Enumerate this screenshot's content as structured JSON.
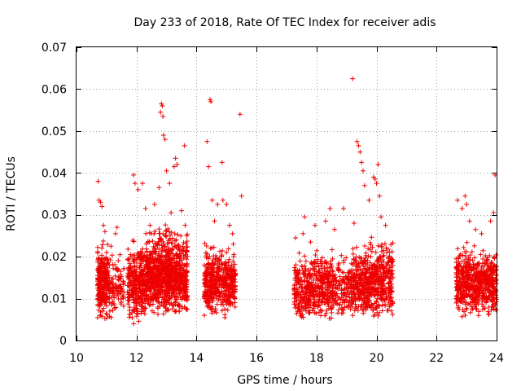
{
  "chart_data": {
    "type": "scatter",
    "title": "Day 233 of 2018, Rate Of TEC Index for receiver adis",
    "xlabel": "GPS time / hours",
    "ylabel": "ROTI / TECUs",
    "xlim": [
      10,
      24
    ],
    "ylim": [
      0,
      0.07
    ],
    "x_ticks": [
      10,
      12,
      14,
      16,
      18,
      20,
      22,
      24
    ],
    "x_tick_labels": [
      "10",
      "12",
      "14",
      "16",
      "18",
      "20",
      "22",
      "24"
    ],
    "y_ticks": [
      0,
      0.01,
      0.02,
      0.03,
      0.04,
      0.05,
      0.06,
      0.07
    ],
    "y_tick_labels": [
      "0",
      "0.01",
      "0.02",
      "0.03",
      "0.04",
      "0.05",
      "0.06",
      "0.07"
    ],
    "grid": true,
    "marker": "+",
    "marker_color": "#ee0000",
    "series": [
      {
        "name": "ROTI",
        "points": [
          [
            10.72,
            0.038
          ],
          [
            10.75,
            0.0335
          ],
          [
            10.8,
            0.033
          ],
          [
            10.85,
            0.032
          ],
          [
            10.9,
            0.0275
          ],
          [
            10.95,
            0.026
          ],
          [
            11.0,
            0.021
          ],
          [
            11.15,
            0.0225
          ],
          [
            11.3,
            0.0255
          ],
          [
            11.35,
            0.027
          ],
          [
            11.45,
            0.0205
          ],
          [
            11.9,
            0.0395
          ],
          [
            11.95,
            0.0375
          ],
          [
            12.05,
            0.036
          ],
          [
            12.2,
            0.0375
          ],
          [
            12.3,
            0.0315
          ],
          [
            12.45,
            0.0275
          ],
          [
            12.6,
            0.0325
          ],
          [
            12.75,
            0.0365
          ],
          [
            12.8,
            0.0545
          ],
          [
            12.83,
            0.0565
          ],
          [
            12.86,
            0.056
          ],
          [
            12.88,
            0.0535
          ],
          [
            12.9,
            0.049
          ],
          [
            12.95,
            0.048
          ],
          [
            13.0,
            0.0405
          ],
          [
            13.1,
            0.0375
          ],
          [
            13.15,
            0.0305
          ],
          [
            13.25,
            0.0415
          ],
          [
            13.3,
            0.0435
          ],
          [
            13.35,
            0.042
          ],
          [
            13.5,
            0.031
          ],
          [
            13.6,
            0.0465
          ],
          [
            13.62,
            0.0275
          ],
          [
            14.35,
            0.0475
          ],
          [
            14.4,
            0.0415
          ],
          [
            14.45,
            0.0575
          ],
          [
            14.48,
            0.057
          ],
          [
            14.52,
            0.0335
          ],
          [
            14.6,
            0.0285
          ],
          [
            14.7,
            0.0325
          ],
          [
            14.85,
            0.0425
          ],
          [
            14.88,
            0.0335
          ],
          [
            15.0,
            0.0325
          ],
          [
            15.1,
            0.0275
          ],
          [
            15.2,
            0.0255
          ],
          [
            15.45,
            0.054
          ],
          [
            15.5,
            0.0345
          ],
          [
            17.3,
            0.0245
          ],
          [
            17.55,
            0.0255
          ],
          [
            17.6,
            0.0295
          ],
          [
            17.8,
            0.0235
          ],
          [
            17.95,
            0.0275
          ],
          [
            18.3,
            0.0285
          ],
          [
            18.45,
            0.0315
          ],
          [
            18.6,
            0.0265
          ],
          [
            18.9,
            0.0315
          ],
          [
            19.2,
            0.0625
          ],
          [
            19.25,
            0.028
          ],
          [
            19.35,
            0.0475
          ],
          [
            19.4,
            0.0465
          ],
          [
            19.45,
            0.045
          ],
          [
            19.5,
            0.0425
          ],
          [
            19.55,
            0.0405
          ],
          [
            19.6,
            0.037
          ],
          [
            19.75,
            0.0335
          ],
          [
            19.9,
            0.039
          ],
          [
            19.95,
            0.0385
          ],
          [
            20.0,
            0.0375
          ],
          [
            20.05,
            0.042
          ],
          [
            20.1,
            0.0345
          ],
          [
            20.15,
            0.0295
          ],
          [
            20.3,
            0.0275
          ],
          [
            22.7,
            0.0335
          ],
          [
            22.85,
            0.0315
          ],
          [
            22.95,
            0.0345
          ],
          [
            23.0,
            0.0325
          ],
          [
            23.1,
            0.0285
          ],
          [
            23.3,
            0.0265
          ],
          [
            23.5,
            0.0255
          ],
          [
            23.8,
            0.0285
          ],
          [
            23.9,
            0.0305
          ],
          [
            23.95,
            0.0395
          ]
        ]
      }
    ],
    "dense_clusters": [
      {
        "x_range": [
          10.7,
          11.05
        ],
        "y_range": [
          0.004,
          0.025
        ],
        "count": 260
      },
      {
        "x_range": [
          11.05,
          11.6
        ],
        "y_range": [
          0.005,
          0.022
        ],
        "count": 110
      },
      {
        "x_range": [
          11.7,
          12.3
        ],
        "y_range": [
          0.003,
          0.026
        ],
        "count": 300
      },
      {
        "x_range": [
          12.3,
          12.75
        ],
        "y_range": [
          0.005,
          0.028
        ],
        "count": 330
      },
      {
        "x_range": [
          12.75,
          13.2
        ],
        "y_range": [
          0.005,
          0.03
        ],
        "count": 330
      },
      {
        "x_range": [
          13.2,
          13.7
        ],
        "y_range": [
          0.005,
          0.028
        ],
        "count": 300
      },
      {
        "x_range": [
          14.25,
          14.75
        ],
        "y_range": [
          0.005,
          0.025
        ],
        "count": 240
      },
      {
        "x_range": [
          14.75,
          15.3
        ],
        "y_range": [
          0.005,
          0.024
        ],
        "count": 240
      },
      {
        "x_range": [
          17.25,
          17.8
        ],
        "y_range": [
          0.004,
          0.022
        ],
        "count": 200
      },
      {
        "x_range": [
          17.8,
          18.6
        ],
        "y_range": [
          0.004,
          0.024
        ],
        "count": 280
      },
      {
        "x_range": [
          18.6,
          19.2
        ],
        "y_range": [
          0.005,
          0.022
        ],
        "count": 140
      },
      {
        "x_range": [
          19.2,
          19.8
        ],
        "y_range": [
          0.004,
          0.026
        ],
        "count": 260
      },
      {
        "x_range": [
          19.8,
          20.55
        ],
        "y_range": [
          0.004,
          0.026
        ],
        "count": 320
      },
      {
        "x_range": [
          22.65,
          23.1
        ],
        "y_range": [
          0.005,
          0.025
        ],
        "count": 220
      },
      {
        "x_range": [
          23.1,
          23.6
        ],
        "y_range": [
          0.005,
          0.024
        ],
        "count": 220
      },
      {
        "x_range": [
          23.6,
          24.0
        ],
        "y_range": [
          0.005,
          0.024
        ],
        "count": 200
      }
    ]
  }
}
